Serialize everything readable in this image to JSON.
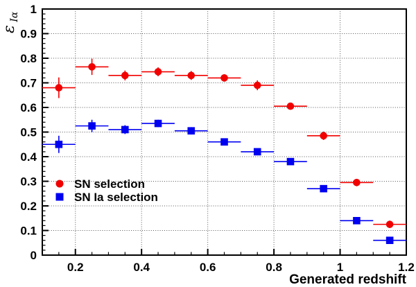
{
  "figure": {
    "background": "#ffffff",
    "frame_color": "#000000"
  },
  "chart_data": {
    "type": "scatter",
    "title": "",
    "xlabel": "Generated redshift",
    "ylabel_main": "ε",
    "ylabel_sub": "Iα",
    "xlim": [
      0.1,
      1.2
    ],
    "ylim": [
      0,
      1
    ],
    "x_major_ticks": [
      0.2,
      0.4,
      0.6,
      0.8,
      1,
      1.2
    ],
    "x_major_tick_labels": [
      "0.2",
      "0.4",
      "0.6",
      "0.8",
      "1",
      "1.2"
    ],
    "x_minor_step": 0.05,
    "y_major_ticks": [
      0,
      0.1,
      0.2,
      0.3,
      0.4,
      0.5,
      0.6,
      0.7,
      0.8,
      0.9,
      1
    ],
    "y_major_tick_labels": [
      "0",
      "0.1",
      "0.2",
      "0.3",
      "0.4",
      "0.5",
      "0.6",
      "0.7",
      "0.8",
      "0.9",
      "1"
    ],
    "y_minor_step": 0.02,
    "grid": {
      "style": "dotted",
      "color": "#555555",
      "x_values": [
        0.2,
        0.4,
        0.6,
        0.8,
        1.0
      ],
      "y_values": [
        0.1,
        0.2,
        0.3,
        0.4,
        0.5,
        0.6,
        0.7,
        0.8,
        0.9
      ]
    },
    "x": [
      0.15,
      0.25,
      0.35,
      0.45,
      0.55,
      0.65,
      0.75,
      0.85,
      0.95,
      1.05,
      1.15
    ],
    "x_err": 0.05,
    "series": [
      {
        "name": "SN selection",
        "marker": "circle",
        "color": "#f10000",
        "values": [
          0.68,
          0.765,
          0.73,
          0.745,
          0.73,
          0.72,
          0.69,
          0.605,
          0.485,
          0.295,
          0.125
        ],
        "y_err": [
          0.042,
          0.033,
          0.02,
          0.018,
          0.018,
          0.015,
          0.02,
          0.012,
          0.017,
          0.015,
          0.015
        ]
      },
      {
        "name": "SN Ia selection",
        "marker": "square",
        "color": "#0000f0",
        "values": [
          0.45,
          0.525,
          0.51,
          0.535,
          0.505,
          0.46,
          0.42,
          0.38,
          0.27,
          0.14,
          0.06
        ],
        "y_err": [
          0.035,
          0.025,
          0.018,
          0.015,
          0.015,
          0.012,
          0.012,
          0.012,
          0.012,
          0.012,
          0.01
        ]
      }
    ],
    "legend": {
      "position": "middle-left"
    }
  }
}
